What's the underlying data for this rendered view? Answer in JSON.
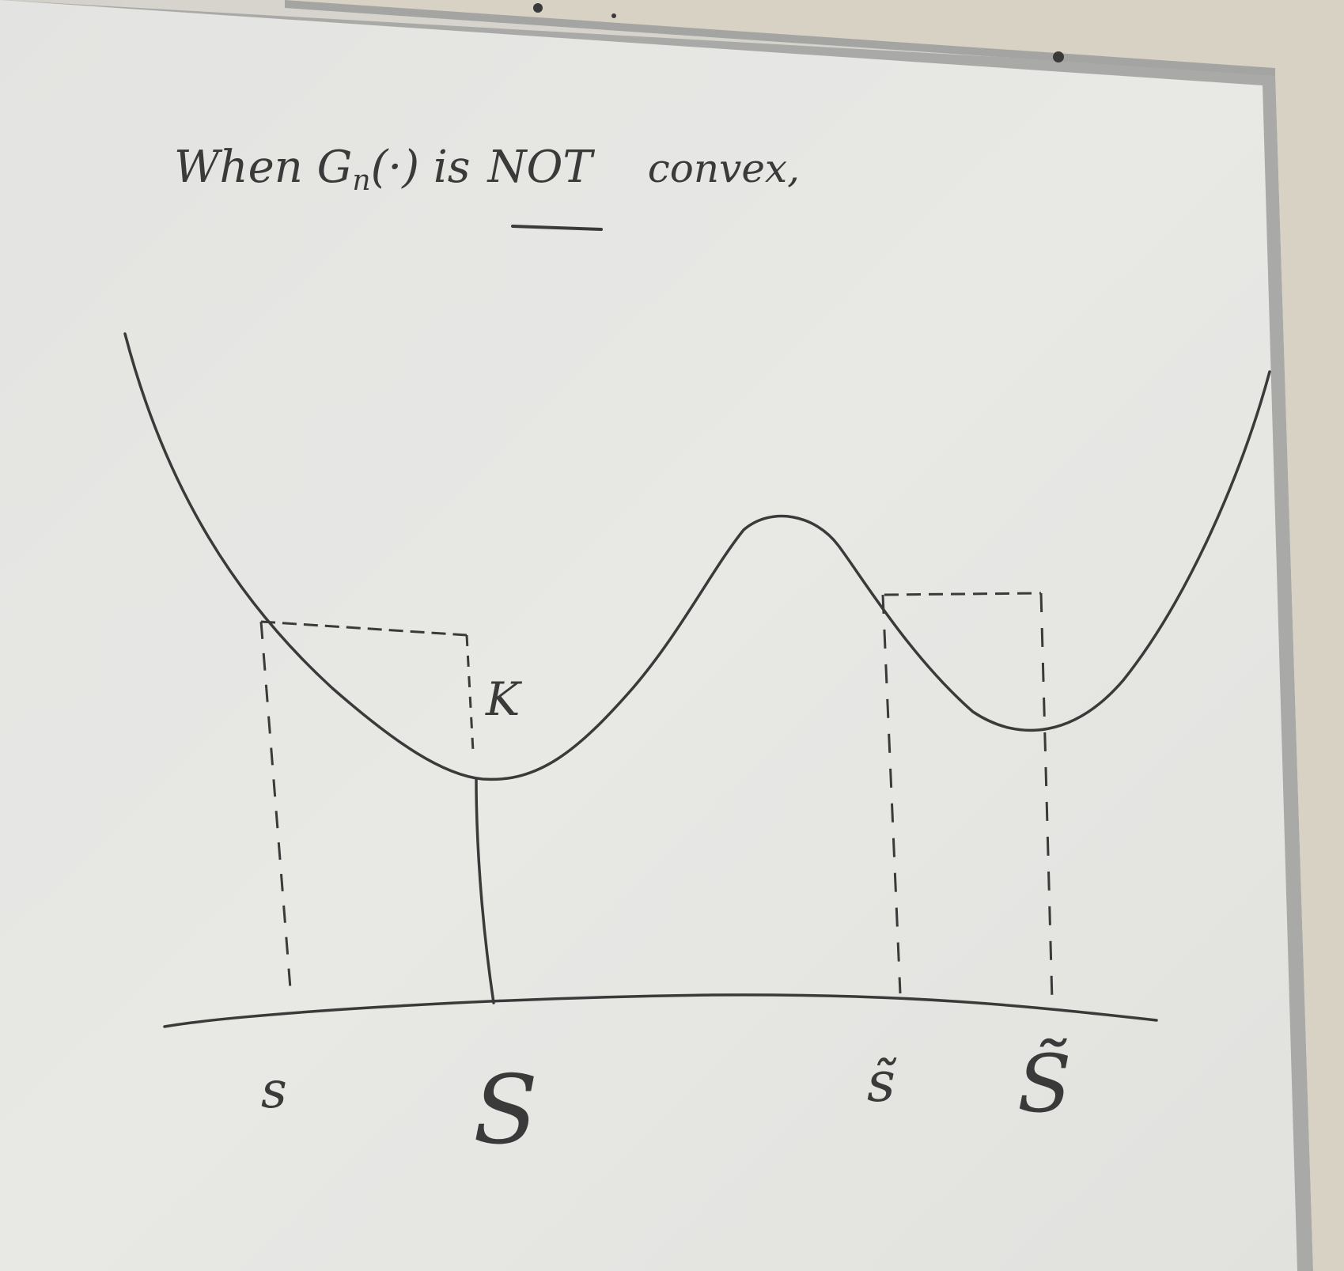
{
  "board": {
    "heading_prefix": "When G",
    "heading_sub": "n",
    "heading_arg": "(·) is",
    "heading_emph": "NOT",
    "heading_suffix": "convex,",
    "label_k": "K",
    "label_s_small": "s",
    "label_s_big": "S",
    "label_s_small_tilde": "s̃",
    "label_s_big_tilde": "S̃"
  },
  "colors": {
    "ink": "#3a3a3a",
    "board": "#e6e6e3",
    "frame": "#a8a9a6"
  }
}
